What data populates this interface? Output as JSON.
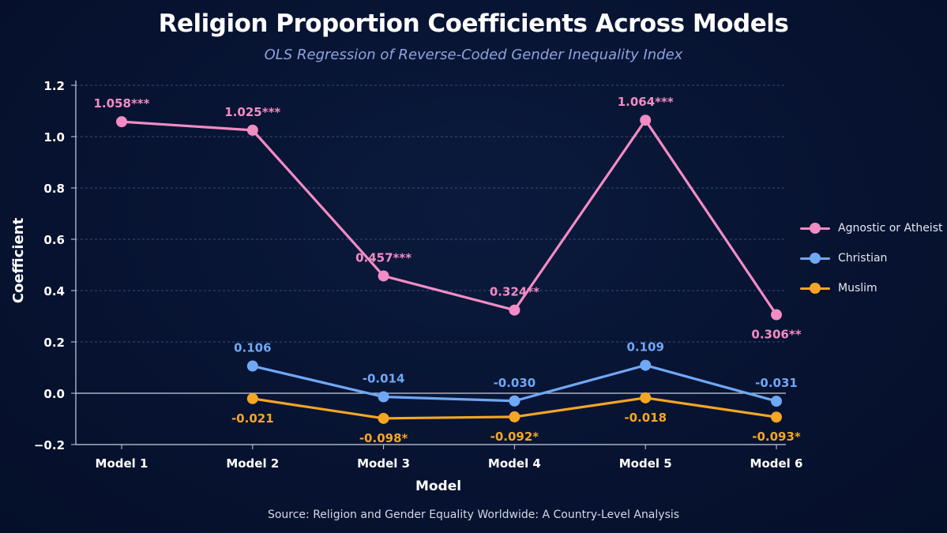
{
  "chart_data": {
    "type": "line",
    "title": "Religion Proportion Coefficients Across Models",
    "subtitle": "OLS Regression of Reverse-Coded Gender Inequality Index",
    "xlabel": "Model",
    "ylabel": "Coefficient",
    "source": "Source: Religion and Gender Equality Worldwide: A Country-Level Analysis",
    "categories": [
      "Model 1",
      "Model 2",
      "Model 3",
      "Model 4",
      "Model 5",
      "Model 6"
    ],
    "ylim": [
      -0.2,
      1.2
    ],
    "yticks": [
      -0.2,
      0.0,
      0.2,
      0.4,
      0.6,
      0.8,
      1.0,
      1.2
    ],
    "ytick_labels": [
      "−0.2",
      "0.0",
      "0.2",
      "0.4",
      "0.6",
      "0.8",
      "1.0",
      "1.2"
    ],
    "grid": true,
    "legend_position": "right",
    "series": [
      {
        "name": "Agnostic or Atheist",
        "color": "#f28cc4",
        "values": [
          1.058,
          1.025,
          0.457,
          0.324,
          1.064,
          0.306
        ],
        "labels": [
          "1.058***",
          "1.025***",
          "0.457***",
          "0.324**",
          "1.064***",
          "0.306**"
        ],
        "label_pos": [
          "above",
          "above",
          "above",
          "above",
          "above",
          "below"
        ]
      },
      {
        "name": "Christian",
        "color": "#6fa8f5",
        "values": [
          null,
          0.106,
          -0.014,
          -0.03,
          0.109,
          -0.031
        ],
        "labels": [
          null,
          "0.106",
          "-0.014",
          "-0.030",
          "0.109",
          "-0.031"
        ],
        "label_pos": [
          null,
          "above",
          "above",
          "above",
          "above",
          "above"
        ]
      },
      {
        "name": "Muslim",
        "color": "#f5a623",
        "values": [
          null,
          -0.021,
          -0.098,
          -0.092,
          -0.018,
          -0.093
        ],
        "labels": [
          null,
          "-0.021",
          "-0.098*",
          "-0.092*",
          "-0.018",
          "-0.093*"
        ],
        "label_pos": [
          null,
          "below",
          "below",
          "below",
          "below",
          "below"
        ]
      }
    ]
  }
}
